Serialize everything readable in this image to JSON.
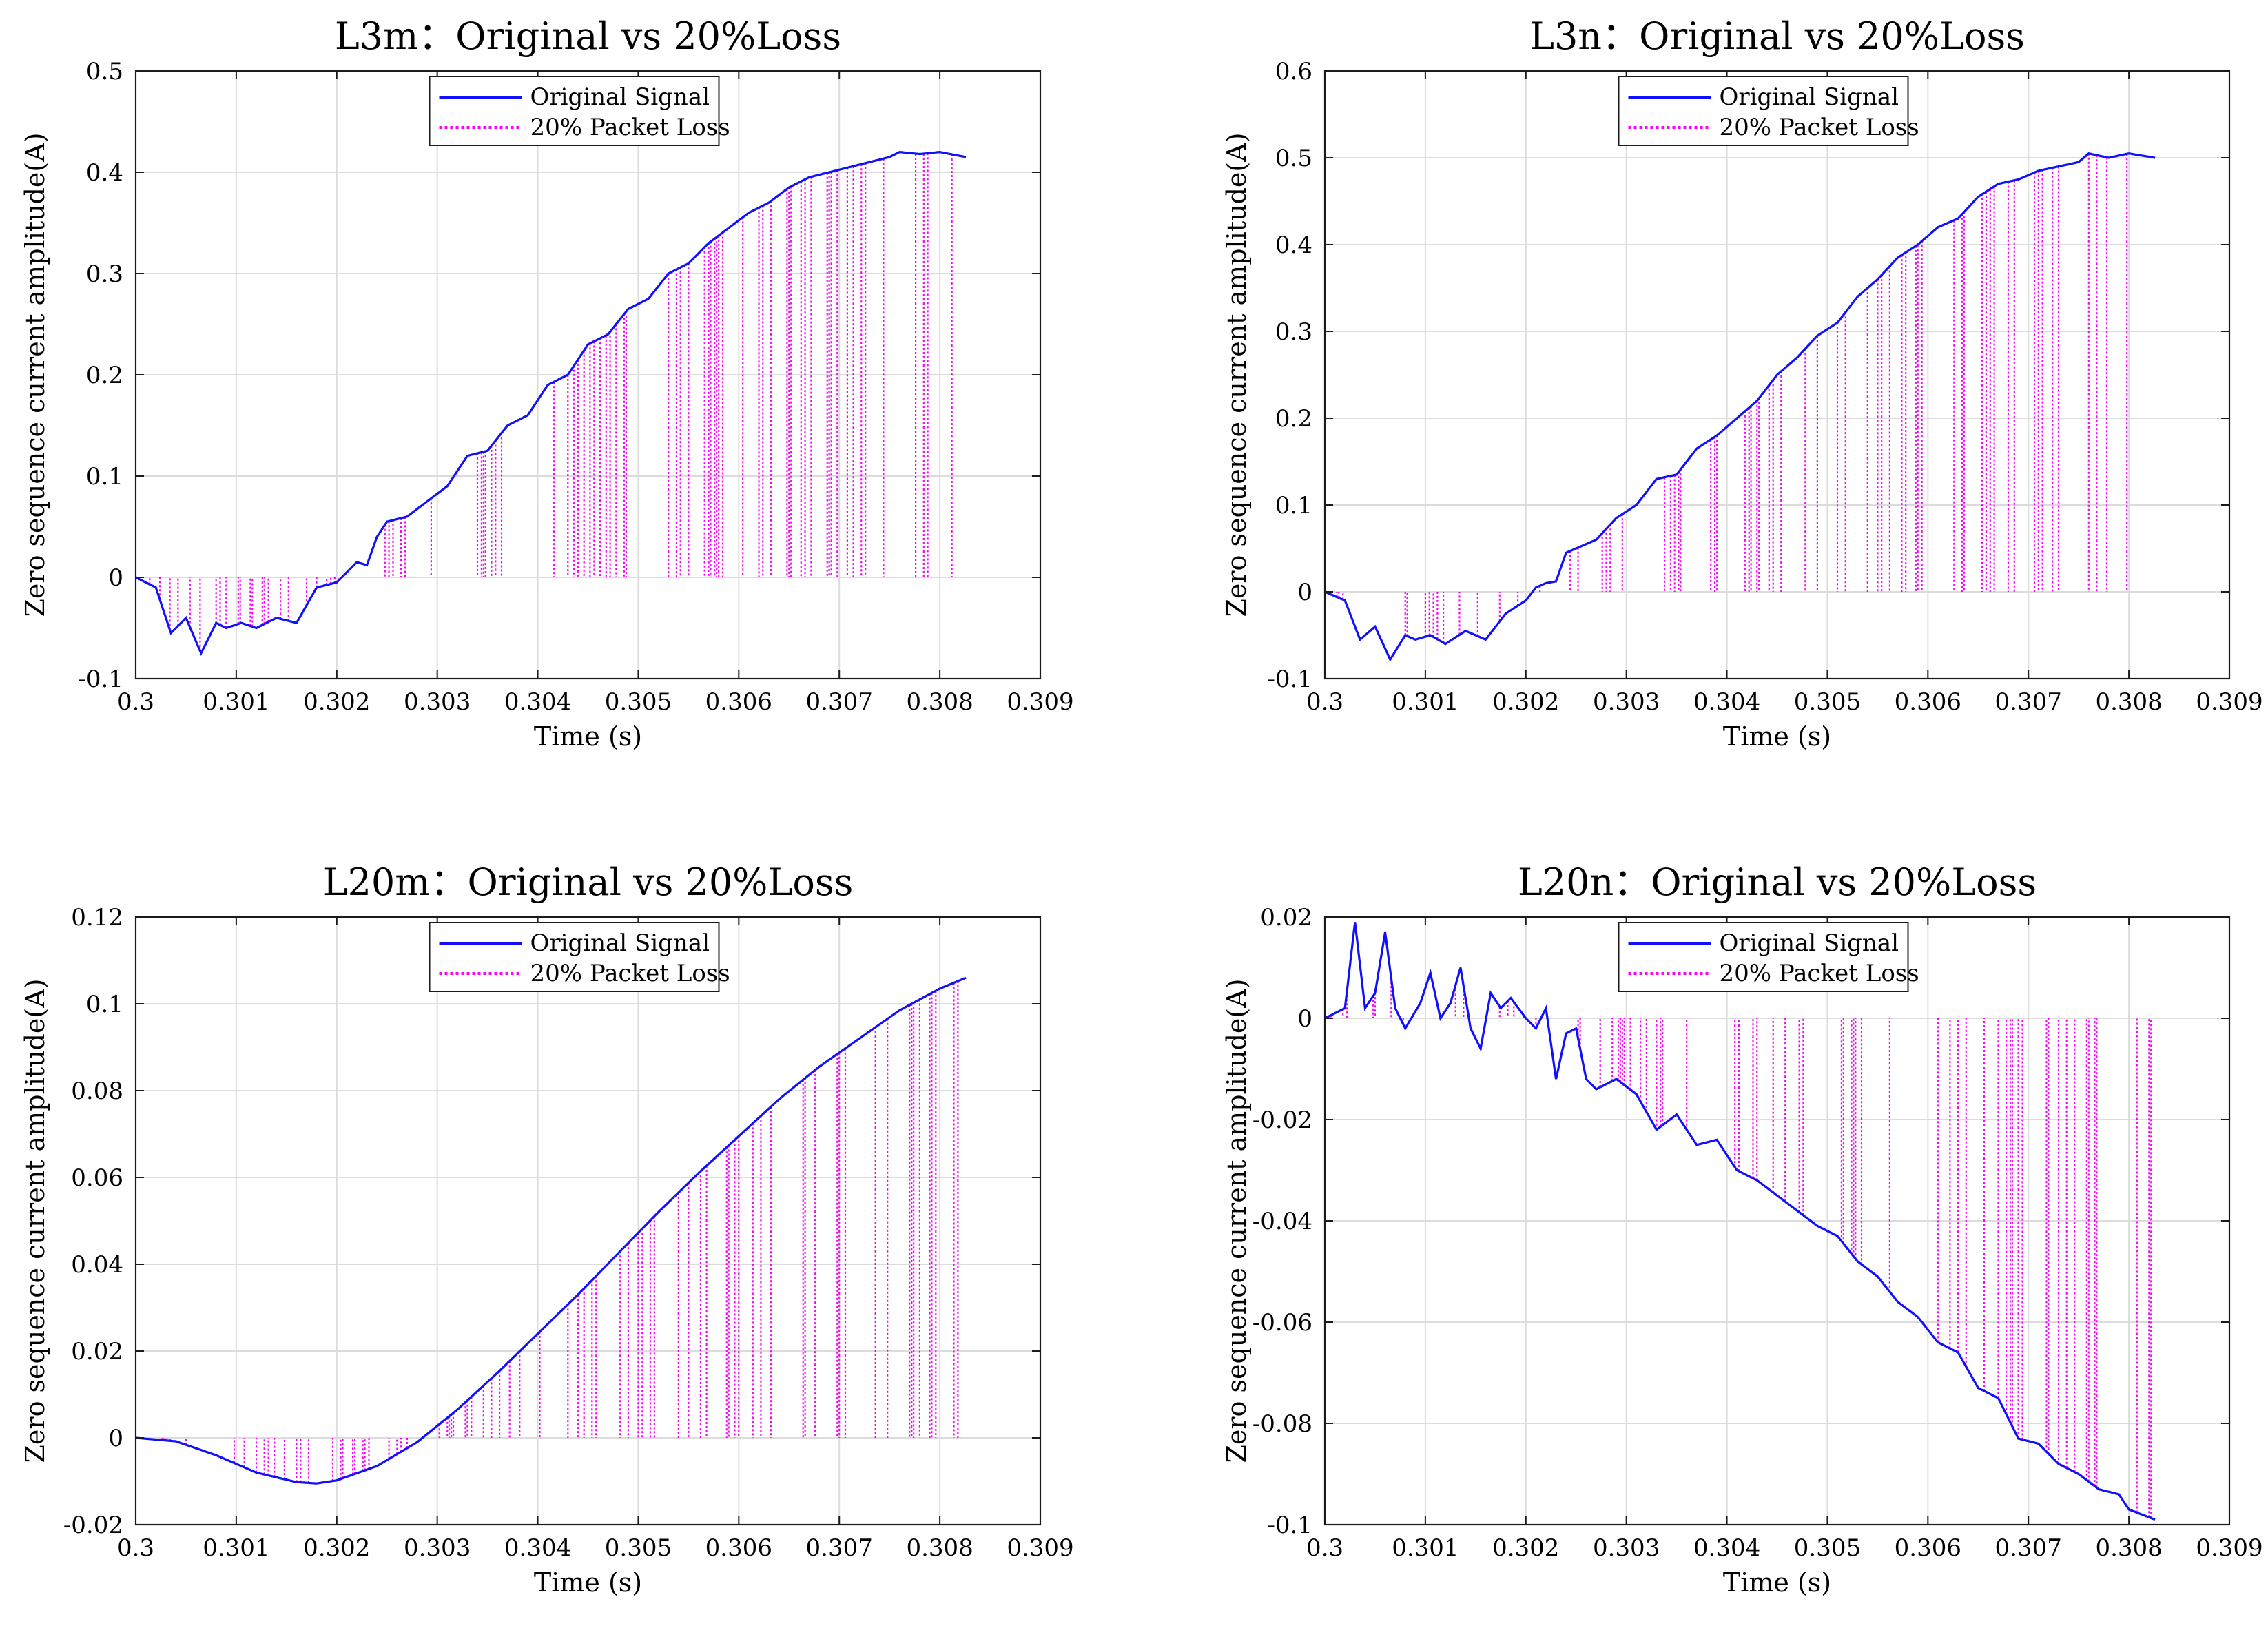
{
  "figure": {
    "series_colors": {
      "original": "#1010ff",
      "loss": "#ff00ff"
    }
  },
  "chart_data": [
    {
      "type": "line",
      "title": "L3m：Original vs 20%Loss",
      "xlabel": "Time (s)",
      "ylabel": "Zero sequence current amplitude(A)",
      "xlim": [
        0.3,
        0.309
      ],
      "ylim": [
        -0.1,
        0.5
      ],
      "xticks": [
        0.3,
        0.301,
        0.302,
        0.303,
        0.304,
        0.305,
        0.306,
        0.307,
        0.308,
        0.309
      ],
      "xtick_labels": [
        "0.3",
        "0.301",
        "0.302",
        "0.303",
        "0.304",
        "0.305",
        "0.306",
        "0.307",
        "0.308",
        "0.309"
      ],
      "yticks": [
        -0.1,
        0,
        0.1,
        0.2,
        0.3,
        0.4,
        0.5
      ],
      "ytick_labels": [
        "-0.1",
        "0",
        "0.1",
        "0.2",
        "0.3",
        "0.4",
        "0.5"
      ],
      "grid": true,
      "legend_position": "top-center",
      "legend": [
        "Original Signal",
        "20% Packet Loss"
      ],
      "x_end": 0.30826,
      "series": [
        {
          "name": "Original Signal",
          "style": "solid",
          "color": "#1010ff",
          "x": [
            0.3,
            0.3002,
            0.30035,
            0.3005,
            0.30065,
            0.3008,
            0.3009,
            0.30105,
            0.3012,
            0.3014,
            0.3016,
            0.3018,
            0.302,
            0.3021,
            0.3022,
            0.3023,
            0.3024,
            0.3025,
            0.3027,
            0.3029,
            0.3031,
            0.3033,
            0.3035,
            0.3037,
            0.3039,
            0.3041,
            0.3043,
            0.3045,
            0.3047,
            0.3049,
            0.3051,
            0.3053,
            0.3055,
            0.3057,
            0.3059,
            0.3061,
            0.3063,
            0.3065,
            0.3067,
            0.3069,
            0.3071,
            0.3073,
            0.3075,
            0.3076,
            0.3078,
            0.308,
            0.30826
          ],
          "y": [
            0,
            -0.01,
            -0.055,
            -0.04,
            -0.075,
            -0.045,
            -0.05,
            -0.045,
            -0.05,
            -0.04,
            -0.045,
            -0.01,
            -0.005,
            0.005,
            0.015,
            0.012,
            0.04,
            0.055,
            0.06,
            0.075,
            0.09,
            0.12,
            0.125,
            0.15,
            0.16,
            0.19,
            0.2,
            0.23,
            0.24,
            0.265,
            0.275,
            0.3,
            0.31,
            0.33,
            0.345,
            0.36,
            0.37,
            0.385,
            0.395,
            0.4,
            0.405,
            0.41,
            0.415,
            0.42,
            0.418,
            0.42,
            0.415
          ]
        },
        {
          "name": "20% Packet Loss",
          "style": "dotted",
          "color": "#ff00ff",
          "x": [
            0.3,
            0.3002,
            0.30035,
            0.3005,
            0.30065,
            0.3008,
            0.3009,
            0.30105,
            0.3012,
            0.3014,
            0.3016,
            0.3018,
            0.302,
            0.3021,
            0.3022,
            0.3023,
            0.3024,
            0.3025,
            0.3027,
            0.3029,
            0.3031,
            0.3033,
            0.3035,
            0.3037,
            0.3039,
            0.3041,
            0.3043,
            0.3045,
            0.3047,
            0.3049,
            0.3051,
            0.3053,
            0.3055,
            0.3057,
            0.3059,
            0.3061,
            0.3063,
            0.3065,
            0.3067,
            0.3069,
            0.3071,
            0.3073,
            0.3075,
            0.3076,
            0.3078,
            0.308,
            0.30826
          ],
          "y": [
            0,
            -0.01,
            -0.055,
            -0.04,
            -0.075,
            -0.045,
            -0.05,
            -0.045,
            -0.05,
            -0.04,
            -0.045,
            -0.01,
            -0.005,
            0.005,
            0.015,
            0.012,
            0.04,
            0.055,
            0.06,
            0.075,
            0.09,
            0.12,
            0.125,
            0.15,
            0.16,
            0.19,
            0.2,
            0.23,
            0.24,
            0.265,
            0.275,
            0.3,
            0.31,
            0.33,
            0.345,
            0.36,
            0.37,
            0.385,
            0.395,
            0.4,
            0.405,
            0.41,
            0.415,
            0.42,
            0.418,
            0.42,
            0.415
          ]
        }
      ]
    },
    {
      "type": "line",
      "title": "L3n：Original vs 20%Loss",
      "xlabel": "Time (s)",
      "ylabel": "Zero sequence current amplitude(A)",
      "xlim": [
        0.3,
        0.309
      ],
      "ylim": [
        -0.1,
        0.6
      ],
      "xticks": [
        0.3,
        0.301,
        0.302,
        0.303,
        0.304,
        0.305,
        0.306,
        0.307,
        0.308,
        0.309
      ],
      "xtick_labels": [
        "0.3",
        "0.301",
        "0.302",
        "0.303",
        "0.304",
        "0.305",
        "0.306",
        "0.307",
        "0.308",
        "0.309"
      ],
      "yticks": [
        -0.1,
        0,
        0.1,
        0.2,
        0.3,
        0.4,
        0.5,
        0.6
      ],
      "ytick_labels": [
        "-0.1",
        "0",
        "0.1",
        "0.2",
        "0.3",
        "0.4",
        "0.5",
        "0.6"
      ],
      "grid": true,
      "legend_position": "top-center",
      "legend": [
        "Original Signal",
        "20% Packet Loss"
      ],
      "x_end": 0.30826,
      "series": [
        {
          "name": "Original Signal",
          "style": "solid",
          "color": "#1010ff",
          "x": [
            0.3,
            0.3002,
            0.30035,
            0.3005,
            0.30065,
            0.3008,
            0.3009,
            0.30105,
            0.3012,
            0.3014,
            0.3016,
            0.3018,
            0.302,
            0.3021,
            0.3022,
            0.3023,
            0.3024,
            0.3025,
            0.3027,
            0.3029,
            0.3031,
            0.3033,
            0.3035,
            0.3037,
            0.3039,
            0.3041,
            0.3043,
            0.3045,
            0.3047,
            0.3049,
            0.3051,
            0.3053,
            0.3055,
            0.3057,
            0.3059,
            0.3061,
            0.3063,
            0.3065,
            0.3067,
            0.3069,
            0.3071,
            0.3073,
            0.3075,
            0.3076,
            0.3078,
            0.308,
            0.30826
          ],
          "y": [
            0,
            -0.01,
            -0.055,
            -0.04,
            -0.078,
            -0.05,
            -0.055,
            -0.05,
            -0.06,
            -0.045,
            -0.055,
            -0.025,
            -0.01,
            0.005,
            0.01,
            0.012,
            0.045,
            0.05,
            0.06,
            0.085,
            0.1,
            0.13,
            0.135,
            0.165,
            0.18,
            0.2,
            0.22,
            0.25,
            0.27,
            0.295,
            0.31,
            0.34,
            0.36,
            0.385,
            0.4,
            0.42,
            0.43,
            0.455,
            0.47,
            0.475,
            0.485,
            0.49,
            0.495,
            0.505,
            0.5,
            0.505,
            0.5
          ]
        },
        {
          "name": "20% Packet Loss",
          "style": "dotted",
          "color": "#ff00ff",
          "x": [
            0.3,
            0.3002,
            0.30035,
            0.3005,
            0.30065,
            0.3008,
            0.3009,
            0.30105,
            0.3012,
            0.3014,
            0.3016,
            0.3018,
            0.302,
            0.3021,
            0.3022,
            0.3023,
            0.3024,
            0.3025,
            0.3027,
            0.3029,
            0.3031,
            0.3033,
            0.3035,
            0.3037,
            0.3039,
            0.3041,
            0.3043,
            0.3045,
            0.3047,
            0.3049,
            0.3051,
            0.3053,
            0.3055,
            0.3057,
            0.3059,
            0.3061,
            0.3063,
            0.3065,
            0.3067,
            0.3069,
            0.3071,
            0.3073,
            0.3075,
            0.3076,
            0.3078,
            0.308,
            0.30826
          ],
          "y": [
            0,
            -0.01,
            -0.055,
            -0.04,
            -0.078,
            -0.05,
            -0.055,
            -0.05,
            -0.06,
            -0.045,
            -0.055,
            -0.025,
            -0.01,
            0.005,
            0.01,
            0.012,
            0.045,
            0.05,
            0.06,
            0.085,
            0.1,
            0.13,
            0.135,
            0.165,
            0.18,
            0.2,
            0.22,
            0.25,
            0.27,
            0.295,
            0.31,
            0.34,
            0.36,
            0.385,
            0.4,
            0.42,
            0.43,
            0.455,
            0.47,
            0.475,
            0.485,
            0.49,
            0.495,
            0.505,
            0.5,
            0.505,
            0.5
          ]
        }
      ]
    },
    {
      "type": "line",
      "title": "L20m：Original vs 20%Loss",
      "xlabel": "Time (s)",
      "ylabel": "Zero sequence current amplitude(A)",
      "xlim": [
        0.3,
        0.309
      ],
      "ylim": [
        -0.02,
        0.12
      ],
      "xticks": [
        0.3,
        0.301,
        0.302,
        0.303,
        0.304,
        0.305,
        0.306,
        0.307,
        0.308,
        0.309
      ],
      "xtick_labels": [
        "0.3",
        "0.301",
        "0.302",
        "0.303",
        "0.304",
        "0.305",
        "0.306",
        "0.307",
        "0.308",
        "0.309"
      ],
      "yticks": [
        -0.02,
        0,
        0.02,
        0.04,
        0.06,
        0.08,
        0.1,
        0.12
      ],
      "ytick_labels": [
        "-0.02",
        "0",
        "0.02",
        "0.04",
        "0.06",
        "0.08",
        "0.1",
        "0.12"
      ],
      "grid": true,
      "legend_position": "top-center",
      "legend": [
        "Original Signal",
        "20% Packet Loss"
      ],
      "x_end": 0.30826,
      "series": [
        {
          "name": "Original Signal",
          "style": "solid",
          "color": "#1010ff",
          "x": [
            0.3,
            0.3004,
            0.3008,
            0.3012,
            0.3016,
            0.3018,
            0.302,
            0.3024,
            0.3028,
            0.3032,
            0.3036,
            0.304,
            0.3044,
            0.3048,
            0.3052,
            0.3056,
            0.306,
            0.3064,
            0.3068,
            0.3072,
            0.3076,
            0.308,
            0.30826
          ],
          "y": [
            0,
            -0.0008,
            -0.004,
            -0.008,
            -0.0102,
            -0.0105,
            -0.0098,
            -0.0065,
            -0.001,
            0.0065,
            0.015,
            0.024,
            0.033,
            0.0425,
            0.052,
            0.061,
            0.0695,
            0.078,
            0.0855,
            0.092,
            0.0985,
            0.1035,
            0.106
          ]
        },
        {
          "name": "20% Packet Loss",
          "style": "dotted",
          "color": "#ff00ff",
          "x": [
            0.3,
            0.3004,
            0.3008,
            0.3012,
            0.3016,
            0.3018,
            0.302,
            0.3024,
            0.3028,
            0.3032,
            0.3036,
            0.304,
            0.3044,
            0.3048,
            0.3052,
            0.3056,
            0.306,
            0.3064,
            0.3068,
            0.3072,
            0.3076,
            0.308,
            0.30826
          ],
          "y": [
            0,
            -0.0008,
            -0.004,
            -0.008,
            -0.0102,
            -0.0105,
            -0.0098,
            -0.0065,
            -0.001,
            0.0065,
            0.015,
            0.024,
            0.033,
            0.0425,
            0.052,
            0.061,
            0.0695,
            0.078,
            0.0855,
            0.092,
            0.0985,
            0.1035,
            0.106
          ]
        }
      ]
    },
    {
      "type": "line",
      "title": "L20n：Original vs 20%Loss",
      "xlabel": "Time (s)",
      "ylabel": "Zero sequence current amplitude(A)",
      "xlim": [
        0.3,
        0.309
      ],
      "ylim": [
        -0.1,
        0.02
      ],
      "xticks": [
        0.3,
        0.301,
        0.302,
        0.303,
        0.304,
        0.305,
        0.306,
        0.307,
        0.308,
        0.309
      ],
      "xtick_labels": [
        "0.3",
        "0.301",
        "0.302",
        "0.303",
        "0.304",
        "0.305",
        "0.306",
        "0.307",
        "0.308",
        "0.309"
      ],
      "yticks": [
        -0.1,
        -0.08,
        -0.06,
        -0.04,
        -0.02,
        0,
        0.02
      ],
      "ytick_labels": [
        "-0.1",
        "-0.08",
        "-0.06",
        "-0.04",
        "-0.02",
        "0",
        "0.02"
      ],
      "grid": true,
      "legend_position": "top-center",
      "legend": [
        "Original Signal",
        "20% Packet Loss"
      ],
      "x_end": 0.30826,
      "series": [
        {
          "name": "Original Signal",
          "style": "solid",
          "color": "#1010ff",
          "x": [
            0.3,
            0.3002,
            0.3003,
            0.3004,
            0.3005,
            0.3006,
            0.3007,
            0.3008,
            0.30095,
            0.30105,
            0.30115,
            0.30125,
            0.30135,
            0.30145,
            0.30155,
            0.30165,
            0.30175,
            0.30185,
            0.302,
            0.3021,
            0.3022,
            0.3023,
            0.3024,
            0.3025,
            0.3026,
            0.3027,
            0.3029,
            0.3031,
            0.3033,
            0.3035,
            0.3037,
            0.3039,
            0.3041,
            0.3043,
            0.3045,
            0.3047,
            0.3049,
            0.3051,
            0.3053,
            0.3055,
            0.3057,
            0.3059,
            0.3061,
            0.3063,
            0.3065,
            0.3067,
            0.3069,
            0.3071,
            0.3073,
            0.3075,
            0.3077,
            0.3079,
            0.308,
            0.30826
          ],
          "y": [
            0,
            0.002,
            0.019,
            0.002,
            0.005,
            0.017,
            0.002,
            -0.002,
            0.003,
            0.009,
            0.0,
            0.003,
            0.01,
            -0.002,
            -0.006,
            0.005,
            0.002,
            0.004,
            0.0,
            -0.002,
            0.002,
            -0.012,
            -0.003,
            -0.002,
            -0.012,
            -0.014,
            -0.012,
            -0.015,
            -0.022,
            -0.019,
            -0.025,
            -0.024,
            -0.03,
            -0.032,
            -0.035,
            -0.038,
            -0.041,
            -0.043,
            -0.048,
            -0.051,
            -0.056,
            -0.059,
            -0.064,
            -0.066,
            -0.073,
            -0.075,
            -0.083,
            -0.084,
            -0.088,
            -0.09,
            -0.093,
            -0.094,
            -0.097,
            -0.099
          ]
        },
        {
          "name": "20% Packet Loss",
          "style": "dotted",
          "color": "#ff00ff",
          "x": [
            0.3,
            0.3002,
            0.3003,
            0.3004,
            0.3005,
            0.3006,
            0.3007,
            0.3008,
            0.30095,
            0.30105,
            0.30115,
            0.30125,
            0.30135,
            0.30145,
            0.30155,
            0.30165,
            0.30175,
            0.30185,
            0.302,
            0.3021,
            0.3022,
            0.3023,
            0.3024,
            0.3025,
            0.3026,
            0.3027,
            0.3029,
            0.3031,
            0.3033,
            0.3035,
            0.3037,
            0.3039,
            0.3041,
            0.3043,
            0.3045,
            0.3047,
            0.3049,
            0.3051,
            0.3053,
            0.3055,
            0.3057,
            0.3059,
            0.3061,
            0.3063,
            0.3065,
            0.3067,
            0.3069,
            0.3071,
            0.3073,
            0.3075,
            0.3077,
            0.3079,
            0.308,
            0.30826
          ],
          "y": [
            0,
            0.002,
            0.019,
            0.002,
            0.005,
            0.017,
            0.002,
            -0.002,
            0.003,
            0.009,
            0.0,
            0.003,
            0.01,
            -0.002,
            -0.006,
            0.005,
            0.002,
            0.004,
            0.0,
            -0.002,
            0.002,
            -0.012,
            -0.003,
            -0.002,
            -0.012,
            -0.014,
            -0.012,
            -0.015,
            -0.022,
            -0.019,
            -0.025,
            -0.024,
            -0.03,
            -0.032,
            -0.035,
            -0.038,
            -0.041,
            -0.043,
            -0.048,
            -0.051,
            -0.056,
            -0.059,
            -0.064,
            -0.066,
            -0.073,
            -0.075,
            -0.083,
            -0.084,
            -0.088,
            -0.09,
            -0.093,
            -0.094,
            -0.097,
            -0.099
          ]
        }
      ]
    }
  ]
}
